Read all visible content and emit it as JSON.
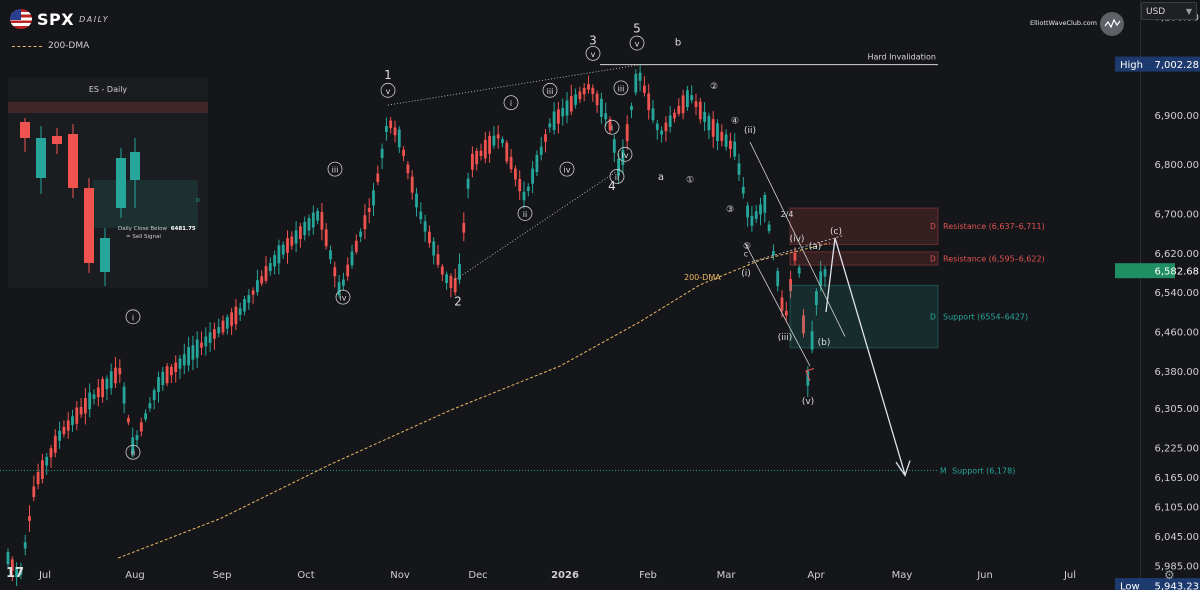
{
  "header": {
    "symbol": "SPX",
    "timeframe": "DAILY",
    "legend_dma_label": "200-DMA",
    "watermark": "ElliottWaveClub.com",
    "currency": "USD",
    "icons": [
      "us-flag-icon",
      "chevron-down-icon",
      "tradingview-logo-icon",
      "gear-icon"
    ]
  },
  "chart_data": {
    "type": "candlestick",
    "x_tick_labels": [
      "Jul",
      "Aug",
      "Sep",
      "Oct",
      "Nov",
      "Dec",
      "2026",
      "Feb",
      "Mar",
      "Apr",
      "May",
      "Jun",
      "Jul"
    ],
    "y_tick_labels": [
      "7,100.00",
      "6,900.00",
      "6,800.00",
      "6,700.00",
      "6,620.00",
      "6,540.00",
      "6,460.00",
      "6,380.00",
      "6,305.00",
      "6,225.00",
      "6,165.00",
      "6,105.00",
      "6,045.00",
      "5,985.00"
    ],
    "ylim": [
      5935,
      7160
    ],
    "high": {
      "label": "High",
      "value": "7,002.28"
    },
    "low": {
      "label": "Low",
      "value": "5,943.23"
    },
    "current_price": "6,582.68",
    "levels": [
      {
        "label": "Hard Invalidation",
        "value": 7002.28
      },
      {
        "tag": "D",
        "label": "Resistance (6,637–6,711)",
        "from": 6637,
        "to": 6711,
        "color": "#e05252"
      },
      {
        "tag": "D",
        "label": "Resistance (6,595–6,622)",
        "from": 6595,
        "to": 6622,
        "color": "#e05252"
      },
      {
        "tag": "D",
        "label": "Support (6554–6427)",
        "from": 6427,
        "to": 6554,
        "color": "#26a69a"
      },
      {
        "tag": "M",
        "label": "Support (6,178)",
        "value": 6178,
        "color": "#26a69a"
      }
    ],
    "ma_label": "200-DMA",
    "wave_labels": [
      "1",
      "2",
      "3",
      "4",
      "5",
      "a",
      "b",
      "i",
      "ii",
      "iii",
      "iv",
      "v",
      "①",
      "②",
      "③",
      "④",
      "⑤",
      "(i)",
      "(ii)",
      "(iii)",
      "(iv)",
      "(v)",
      "(a)",
      "(b)",
      "(c)",
      "c",
      "2/4"
    ],
    "colors": {
      "up": "#26a69a",
      "down": "#ef5350",
      "background": "#151619",
      "ma": "#e8b765"
    }
  },
  "inset": {
    "title": "ES - Daily",
    "close_label": "Daily Close Below",
    "close_value": "6481.75",
    "signal_label": "= Sell Signal",
    "tag": "D"
  }
}
